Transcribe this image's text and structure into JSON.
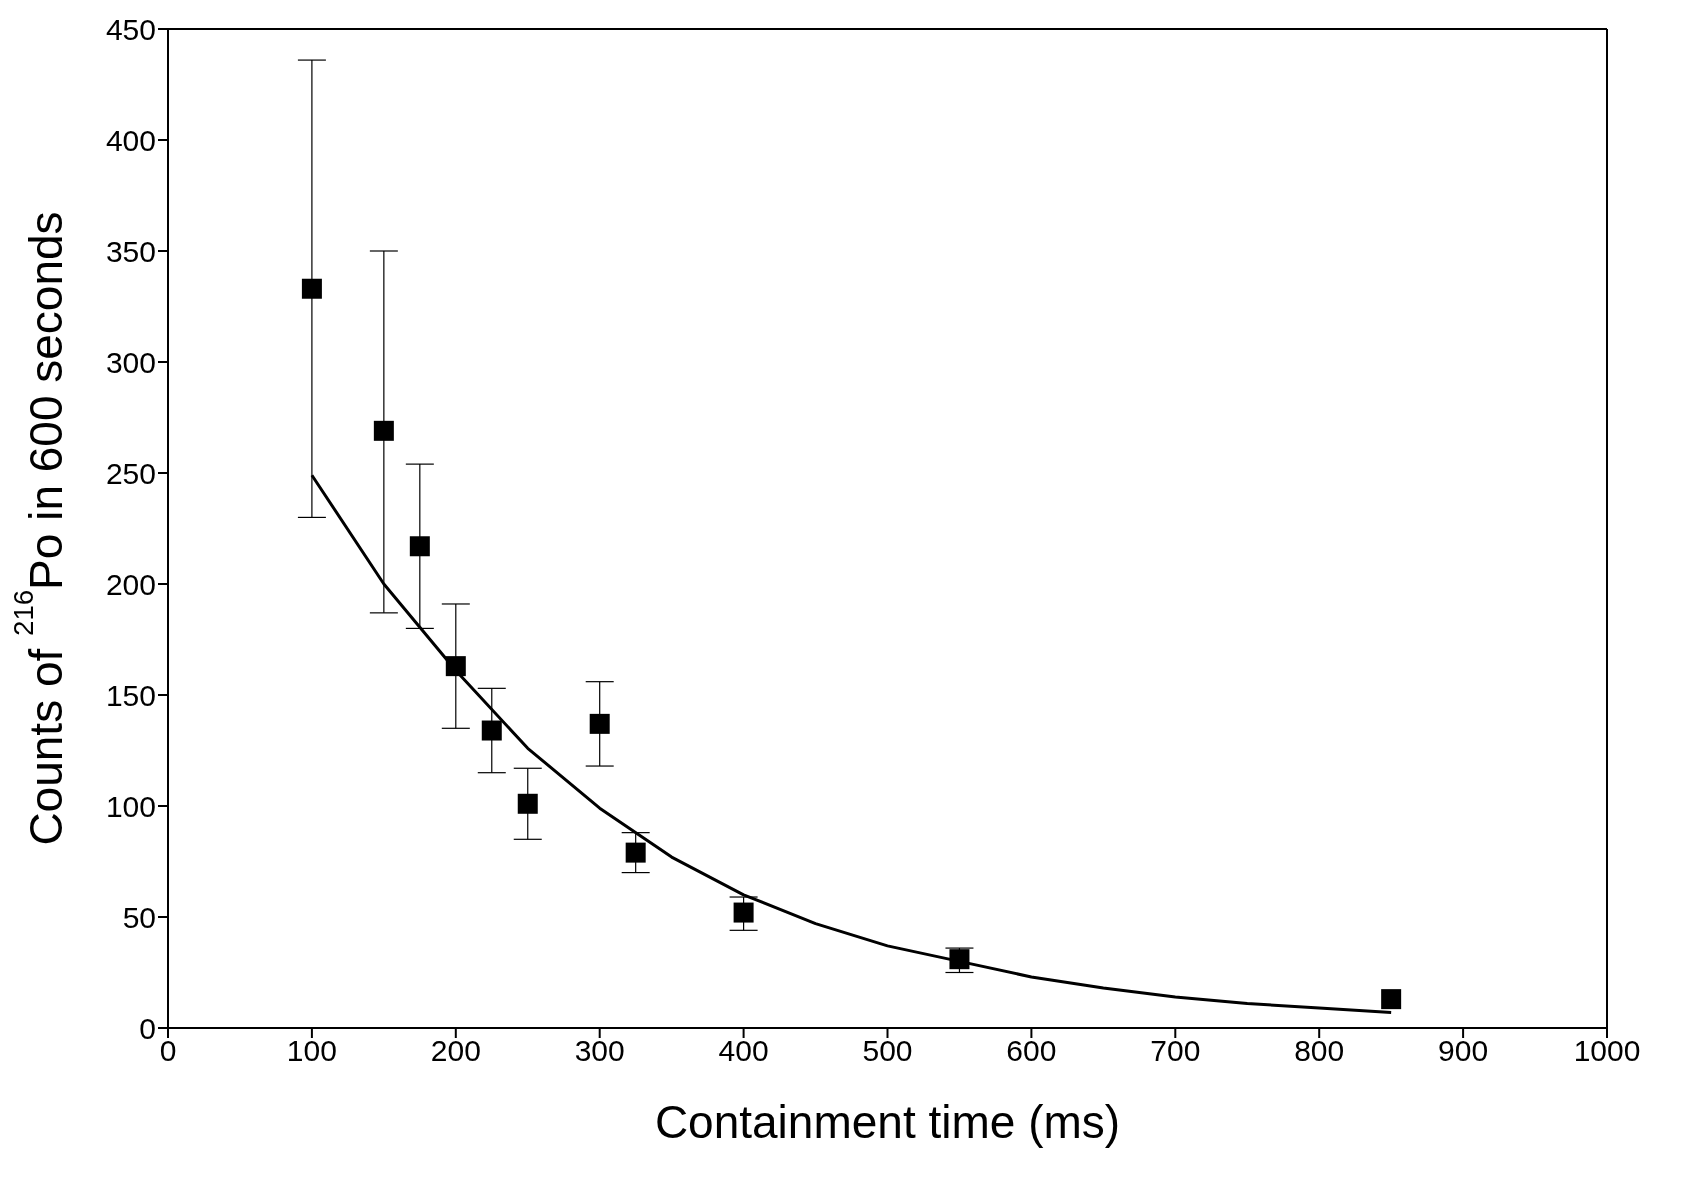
{
  "chart_data": {
    "type": "scatter",
    "xlabel": "Containment time (ms)",
    "ylabel": "Counts of $^{216}$Po in 600 seconds",
    "xlim": [
      0,
      1000
    ],
    "xticks": [
      0,
      100,
      200,
      300,
      400,
      500,
      600,
      700,
      800,
      900,
      1000
    ],
    "ylim": [
      0,
      450
    ],
    "yticks": [
      0,
      50,
      100,
      150,
      200,
      250,
      300,
      350,
      400,
      450
    ],
    "marker": "square",
    "series": [
      {
        "color": "#000000",
        "x": [
          100,
          150,
          175,
          200,
          225,
          250,
          300,
          325,
          400,
          550,
          850
        ],
        "values": [
          333,
          269,
          217,
          163,
          134,
          101,
          137,
          79,
          52,
          31,
          13
        ],
        "errors": [
          [
            230,
            436
          ],
          [
            187,
            350
          ],
          [
            180,
            254
          ],
          [
            135,
            191
          ],
          [
            115,
            153
          ],
          [
            85,
            117
          ],
          [
            118,
            156
          ],
          [
            70,
            88
          ],
          [
            44,
            59
          ],
          [
            25,
            36
          ],
          null
        ]
      },
      {
        "type": "line",
        "color": "#000000",
        "line_style": "solid",
        "marker": "none",
        "x": [
          100,
          150,
          200,
          250,
          300,
          350,
          400,
          450,
          500,
          550,
          600,
          650,
          700,
          750,
          800,
          850
        ],
        "values": [
          249,
          200,
          161,
          126,
          99,
          77,
          60,
          47,
          37,
          30,
          23,
          18,
          14,
          11,
          9,
          7
        ]
      }
    ]
  }
}
